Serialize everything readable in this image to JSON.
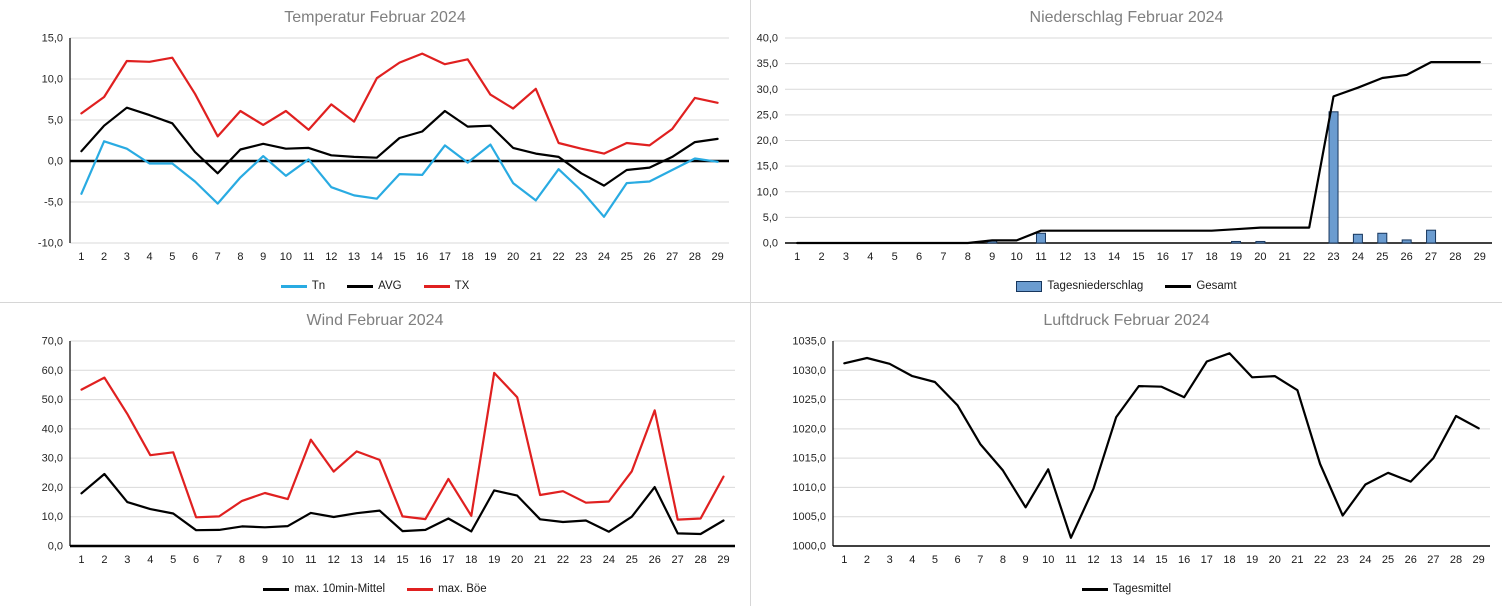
{
  "chart_data": [
    {
      "slug": "temperature",
      "type": "line",
      "title": "Temperatur Februar 2024",
      "categories": [
        "1",
        "2",
        "3",
        "4",
        "5",
        "6",
        "7",
        "8",
        "9",
        "10",
        "11",
        "12",
        "13",
        "14",
        "15",
        "16",
        "17",
        "18",
        "19",
        "20",
        "21",
        "22",
        "23",
        "24",
        "25",
        "26",
        "27",
        "28",
        "29"
      ],
      "series": [
        {
          "name": "Tn",
          "slug": "tn",
          "kind": "line",
          "color": "#29ABE2",
          "values": [
            -4.0,
            2.4,
            1.5,
            -0.3,
            -0.3,
            -2.5,
            -5.2,
            -2.0,
            0.6,
            -1.8,
            0.2,
            -3.2,
            -4.2,
            -4.6,
            -1.6,
            -1.7,
            1.9,
            -0.2,
            2.0,
            -2.7,
            -4.8,
            -1.0,
            -3.6,
            -6.8,
            -2.7,
            -2.5,
            -1.1,
            0.3,
            -0.1
          ]
        },
        {
          "name": "AVG",
          "slug": "avg",
          "kind": "line",
          "color": "#000000",
          "values": [
            1.2,
            4.3,
            6.5,
            5.6,
            4.6,
            1.1,
            -1.5,
            1.4,
            2.1,
            1.5,
            1.6,
            0.7,
            0.5,
            0.4,
            2.8,
            3.6,
            6.1,
            4.2,
            4.3,
            1.6,
            0.9,
            0.5,
            -1.5,
            -3.0,
            -1.1,
            -0.8,
            0.5,
            2.3,
            2.7
          ]
        },
        {
          "name": "TX",
          "slug": "tx",
          "kind": "line",
          "color": "#E02020",
          "values": [
            5.8,
            7.8,
            12.2,
            12.1,
            12.6,
            8.2,
            3.0,
            6.1,
            4.4,
            6.1,
            3.8,
            6.9,
            4.8,
            10.1,
            12.0,
            13.1,
            11.8,
            12.4,
            8.1,
            6.4,
            8.8,
            2.2,
            1.5,
            0.9,
            2.2,
            1.9,
            3.9,
            7.7,
            7.1
          ]
        }
      ],
      "ylim": [
        -10,
        15
      ],
      "ytick": 5,
      "zero_line": 0,
      "axis_left": true,
      "axis_bottom": 0,
      "grid": true,
      "legend_position": "bottom"
    },
    {
      "slug": "precipitation",
      "type": "bar",
      "title": "Niederschlag Februar 2024",
      "categories": [
        "1",
        "2",
        "3",
        "4",
        "5",
        "6",
        "7",
        "8",
        "9",
        "10",
        "11",
        "12",
        "13",
        "14",
        "15",
        "16",
        "17",
        "18",
        "19",
        "20",
        "21",
        "22",
        "23",
        "24",
        "25",
        "26",
        "27",
        "28",
        "29"
      ],
      "series": [
        {
          "name": "Tagesniederschlag",
          "slug": "tagesniederschlag",
          "kind": "bar",
          "color": "#6B9CD0",
          "border": "#17365D",
          "values": [
            0,
            0,
            0,
            0,
            0,
            0,
            0,
            0,
            0.5,
            0,
            1.9,
            0,
            0,
            0,
            0,
            0,
            0,
            0,
            0.3,
            0.3,
            0,
            0,
            25.6,
            1.7,
            1.9,
            0.6,
            2.5,
            0,
            0
          ]
        },
        {
          "name": "Gesamt",
          "slug": "gesamt",
          "kind": "line",
          "color": "#000000",
          "values": [
            0,
            0,
            0,
            0,
            0,
            0,
            0,
            0,
            0.5,
            0.5,
            2.4,
            2.4,
            2.4,
            2.4,
            2.4,
            2.4,
            2.4,
            2.4,
            2.7,
            3.0,
            3.0,
            3.0,
            28.6,
            30.3,
            32.2,
            32.8,
            35.3,
            35.3,
            35.3
          ]
        }
      ],
      "ylim": [
        0,
        40
      ],
      "ytick": 5,
      "axis_left": false,
      "axis_bottom": 1.5,
      "grid": true,
      "legend_position": "bottom"
    },
    {
      "slug": "wind",
      "type": "line",
      "title": "Wind Februar 2024",
      "categories": [
        "1",
        "2",
        "3",
        "4",
        "5",
        "6",
        "7",
        "8",
        "9",
        "10",
        "11",
        "12",
        "13",
        "14",
        "15",
        "16",
        "17",
        "18",
        "19",
        "20",
        "21",
        "22",
        "23",
        "24",
        "25",
        "26",
        "27",
        "28",
        "29"
      ],
      "series": [
        {
          "name": "max. 10min-Mittel",
          "slug": "max-10min-mittel",
          "kind": "line",
          "color": "#000000",
          "values": [
            18.0,
            24.6,
            15.0,
            12.6,
            11.1,
            5.4,
            5.5,
            6.7,
            6.4,
            6.8,
            11.3,
            9.9,
            11.2,
            12.1,
            5.1,
            5.5,
            9.4,
            5.0,
            19.0,
            17.2,
            9.1,
            8.2,
            8.7,
            4.9,
            10.0,
            20.1,
            4.3,
            4.1,
            8.7
          ]
        },
        {
          "name": "max. Böe",
          "slug": "max-boee",
          "kind": "line",
          "color": "#E02020",
          "values": [
            53.4,
            57.5,
            45.1,
            31.0,
            32.0,
            9.8,
            10.1,
            15.4,
            18.1,
            16.0,
            36.3,
            25.4,
            32.3,
            29.4,
            10.1,
            9.2,
            22.9,
            10.3,
            59.1,
            50.8,
            17.4,
            18.7,
            14.8,
            15.2,
            25.5,
            46.3,
            9.0,
            9.4,
            23.7
          ]
        }
      ],
      "ylim": [
        0,
        70
      ],
      "ytick": 10,
      "axis_left": true,
      "axis_bottom": 2.4,
      "grid": true,
      "legend_position": "bottom"
    },
    {
      "slug": "pressure",
      "type": "line",
      "title": "Luftdruck Februar 2024",
      "categories": [
        "1",
        "2",
        "3",
        "4",
        "5",
        "6",
        "7",
        "8",
        "9",
        "10",
        "11",
        "12",
        "13",
        "14",
        "15",
        "16",
        "17",
        "18",
        "19",
        "20",
        "21",
        "22",
        "23",
        "24",
        "25",
        "26",
        "27",
        "28",
        "29"
      ],
      "series": [
        {
          "name": "Tagesmittel",
          "slug": "tagesmittel",
          "kind": "line",
          "color": "#000000",
          "values": [
            1031.2,
            1032.1,
            1031.1,
            1029.0,
            1028.0,
            1024.0,
            1017.4,
            1012.9,
            1006.6,
            1013.1,
            1001.4,
            1009.8,
            1022.0,
            1027.3,
            1027.2,
            1025.4,
            1031.5,
            1032.9,
            1028.8,
            1029.0,
            1026.6,
            1014.0,
            1005.2,
            1010.5,
            1012.5,
            1011.0,
            1015.0,
            1022.2,
            1020.1
          ]
        }
      ],
      "ylim": [
        1000,
        1035
      ],
      "ytick": 5,
      "axis_left": true,
      "axis_bottom": 1.5,
      "grid": true,
      "legend_position": "bottom"
    }
  ]
}
